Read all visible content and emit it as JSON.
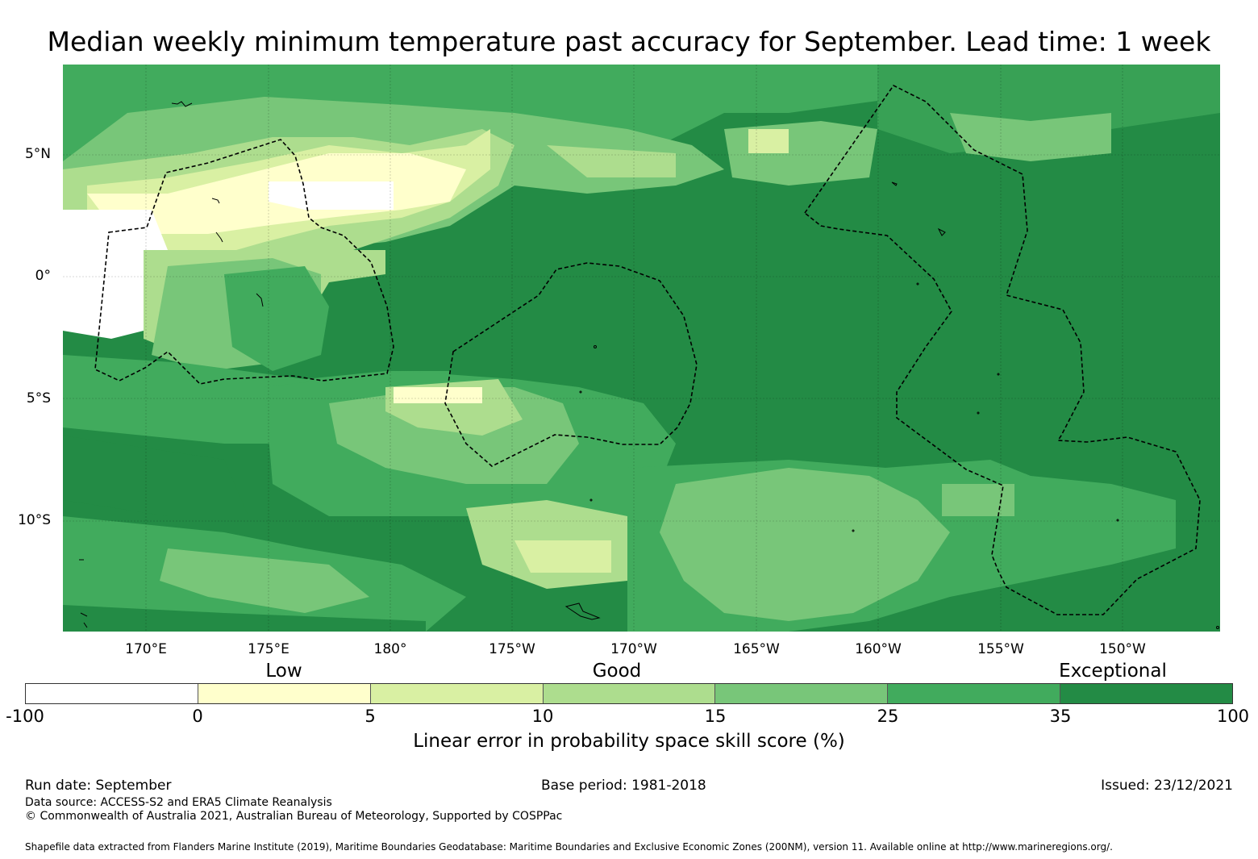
{
  "title": "Median weekly minimum temperature past accuracy for September. Lead time: 1 week",
  "map": {
    "lat_labels": [
      "5°N",
      "0°",
      "5°S",
      "10°S"
    ],
    "lon_labels": [
      "170°E",
      "175°E",
      "180°",
      "175°W",
      "170°W",
      "165°W",
      "160°W",
      "155°W",
      "150°W"
    ],
    "extent": {
      "lon_west": 166.6,
      "lon_east": 213.9,
      "lat_north": 8.7,
      "lat_south": -14.5
    },
    "ocean_color": "#238b45"
  },
  "colorbar": {
    "categories": [
      "Low",
      "Good",
      "Exceptional"
    ],
    "ticks": [
      "-100",
      "0",
      "5",
      "10",
      "15",
      "25",
      "35",
      "100"
    ],
    "colors": [
      "#ffffff",
      "#ffffcc",
      "#d9f0a3",
      "#addd8e",
      "#78c679",
      "#41ab5d",
      "#238b45"
    ],
    "title": "Linear error in probability space skill score (%)"
  },
  "footer": {
    "run_date": "Run date: September",
    "base_period": "Base period: 1981-2018",
    "issued": "Issued: 23/12/2021",
    "data_source": "Data source: ACCESS-S2 and ERA5 Climate Reanalysis",
    "copyright": "© Commonwealth of Australia 2021, Australian Bureau of Meteorology, Supported by COSPPac",
    "shapefile": "Shapefile data extracted from Flanders Marine Institute (2019), Maritime Boundaries Geodatabase: Maritime Boundaries and Exclusive Economic Zones (200NM), version 11. Available online at http://www.marineregions.org/."
  }
}
